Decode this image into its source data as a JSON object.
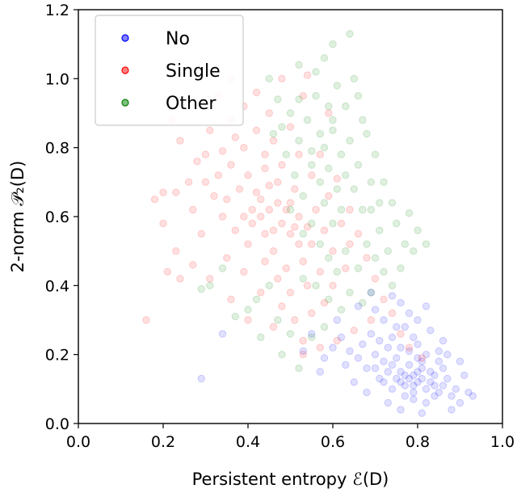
{
  "chart_data": {
    "type": "scatter",
    "xlabel": "Persistent entropy ℰ(D)",
    "ylabel": "2-norm 𝒫₂(D)",
    "xlim": [
      0.0,
      1.0
    ],
    "ylim": [
      0.0,
      1.2
    ],
    "xticks": [
      0.0,
      0.2,
      0.4,
      0.6,
      0.8,
      1.0
    ],
    "xtick_labels": [
      "0.0",
      "0.2",
      "0.4",
      "0.6",
      "0.8",
      "1.0"
    ],
    "yticks": [
      0.0,
      0.2,
      0.4,
      0.6,
      0.8,
      1.0,
      1.2
    ],
    "ytick_labels": [
      "0.0",
      "0.2",
      "0.4",
      "0.6",
      "0.8",
      "1.0",
      "1.2"
    ],
    "legend_position": "top-left",
    "grid": false,
    "marker_alpha": 0.12,
    "series": [
      {
        "name": "No",
        "color": "#0000ff",
        "points": [
          [
            0.78,
            0.13
          ],
          [
            0.76,
            0.15
          ],
          [
            0.8,
            0.12
          ],
          [
            0.82,
            0.1
          ],
          [
            0.74,
            0.17
          ],
          [
            0.79,
            0.14
          ],
          [
            0.77,
            0.11
          ],
          [
            0.81,
            0.16
          ],
          [
            0.75,
            0.13
          ],
          [
            0.83,
            0.12
          ],
          [
            0.72,
            0.18
          ],
          [
            0.7,
            0.2
          ],
          [
            0.73,
            0.15
          ],
          [
            0.85,
            0.09
          ],
          [
            0.86,
            0.11
          ],
          [
            0.88,
            0.08
          ],
          [
            0.84,
            0.14
          ],
          [
            0.8,
            0.19
          ],
          [
            0.78,
            0.21
          ],
          [
            0.76,
            0.22
          ],
          [
            0.71,
            0.24
          ],
          [
            0.69,
            0.26
          ],
          [
            0.67,
            0.23
          ],
          [
            0.66,
            0.19
          ],
          [
            0.64,
            0.21
          ],
          [
            0.68,
            0.16
          ],
          [
            0.71,
            0.13
          ],
          [
            0.74,
            0.1
          ],
          [
            0.77,
            0.08
          ],
          [
            0.79,
            0.07
          ],
          [
            0.82,
            0.06
          ],
          [
            0.87,
            0.13
          ],
          [
            0.89,
            0.1
          ],
          [
            0.9,
            0.06
          ],
          [
            0.92,
            0.09
          ],
          [
            0.93,
            0.08
          ],
          [
            0.91,
            0.14
          ],
          [
            0.85,
            0.18
          ],
          [
            0.82,
            0.2
          ],
          [
            0.79,
            0.25
          ],
          [
            0.75,
            0.28
          ],
          [
            0.72,
            0.3
          ],
          [
            0.7,
            0.33
          ],
          [
            0.76,
            0.35
          ],
          [
            0.8,
            0.3
          ],
          [
            0.83,
            0.27
          ],
          [
            0.86,
            0.24
          ],
          [
            0.62,
            0.25
          ],
          [
            0.6,
            0.22
          ],
          [
            0.63,
            0.17
          ],
          [
            0.58,
            0.19
          ],
          [
            0.65,
            0.12
          ],
          [
            0.68,
            0.09
          ],
          [
            0.73,
            0.06
          ],
          [
            0.76,
            0.04
          ],
          [
            0.81,
            0.03
          ],
          [
            0.88,
            0.04
          ],
          [
            0.84,
            0.08
          ],
          [
            0.78,
            0.17
          ],
          [
            0.81,
            0.13
          ],
          [
            0.77,
            0.14
          ],
          [
            0.8,
            0.15
          ],
          [
            0.79,
            0.11
          ],
          [
            0.83,
            0.15
          ],
          [
            0.75,
            0.19
          ],
          [
            0.73,
            0.22
          ],
          [
            0.86,
            0.16
          ],
          [
            0.87,
            0.2
          ],
          [
            0.78,
            0.32
          ],
          [
            0.74,
            0.37
          ],
          [
            0.55,
            0.26
          ],
          [
            0.53,
            0.21
          ],
          [
            0.29,
            0.13
          ],
          [
            0.34,
            0.26
          ],
          [
            0.57,
            0.15
          ],
          [
            0.61,
            0.3
          ],
          [
            0.66,
            0.34
          ],
          [
            0.69,
            0.38
          ],
          [
            0.82,
            0.34
          ],
          [
            0.9,
            0.18
          ],
          [
            0.79,
            0.09
          ],
          [
            0.76,
            0.12
          ],
          [
            0.81,
            0.18
          ],
          [
            0.84,
            0.11
          ],
          [
            0.72,
            0.12
          ],
          [
            0.7,
            0.16
          ],
          [
            0.74,
            0.25
          ],
          [
            0.77,
            0.28
          ],
          [
            0.8,
            0.23
          ],
          [
            0.85,
            0.21
          ]
        ]
      },
      {
        "name": "Single",
        "color": "#ff0000",
        "points": [
          [
            0.45,
            0.62
          ],
          [
            0.48,
            0.58
          ],
          [
            0.5,
            0.55
          ],
          [
            0.42,
            0.67
          ],
          [
            0.47,
            0.7
          ],
          [
            0.52,
            0.6
          ],
          [
            0.44,
            0.55
          ],
          [
            0.4,
            0.72
          ],
          [
            0.38,
            0.68
          ],
          [
            0.46,
            0.5
          ],
          [
            0.55,
            0.52
          ],
          [
            0.53,
            0.47
          ],
          [
            0.49,
            0.45
          ],
          [
            0.43,
            0.6
          ],
          [
            0.41,
            0.58
          ],
          [
            0.36,
            0.75
          ],
          [
            0.35,
            0.65
          ],
          [
            0.39,
            0.8
          ],
          [
            0.44,
            0.78
          ],
          [
            0.48,
            0.75
          ],
          [
            0.51,
            0.68
          ],
          [
            0.56,
            0.62
          ],
          [
            0.58,
            0.56
          ],
          [
            0.6,
            0.5
          ],
          [
            0.57,
            0.44
          ],
          [
            0.54,
            0.4
          ],
          [
            0.5,
            0.38
          ],
          [
            0.47,
            0.42
          ],
          [
            0.44,
            0.47
          ],
          [
            0.4,
            0.52
          ],
          [
            0.37,
            0.56
          ],
          [
            0.34,
            0.6
          ],
          [
            0.32,
            0.66
          ],
          [
            0.33,
            0.72
          ],
          [
            0.3,
            0.78
          ],
          [
            0.31,
            0.85
          ],
          [
            0.36,
            0.88
          ],
          [
            0.42,
            0.85
          ],
          [
            0.46,
            0.82
          ],
          [
            0.52,
            0.78
          ],
          [
            0.55,
            0.72
          ],
          [
            0.59,
            0.66
          ],
          [
            0.62,
            0.58
          ],
          [
            0.64,
            0.52
          ],
          [
            0.63,
            0.45
          ],
          [
            0.6,
            0.4
          ],
          [
            0.58,
            0.35
          ],
          [
            0.55,
            0.32
          ],
          [
            0.51,
            0.3
          ],
          [
            0.48,
            0.34
          ],
          [
            0.43,
            0.38
          ],
          [
            0.39,
            0.44
          ],
          [
            0.35,
            0.48
          ],
          [
            0.29,
            0.55
          ],
          [
            0.27,
            0.62
          ],
          [
            0.26,
            0.7
          ],
          [
            0.28,
            0.76
          ],
          [
            0.24,
            0.82
          ],
          [
            0.22,
            0.88
          ],
          [
            0.25,
            0.93
          ],
          [
            0.33,
            0.95
          ],
          [
            0.39,
            0.92
          ],
          [
            0.45,
            0.9
          ],
          [
            0.5,
            0.86
          ],
          [
            0.48,
            1.0
          ],
          [
            0.53,
            0.95
          ],
          [
            0.59,
            0.9
          ],
          [
            0.66,
            0.55
          ],
          [
            0.68,
            0.48
          ],
          [
            0.7,
            0.42
          ],
          [
            0.72,
            0.36
          ],
          [
            0.74,
            0.32
          ],
          [
            0.69,
            0.3
          ],
          [
            0.65,
            0.27
          ],
          [
            0.61,
            0.24
          ],
          [
            0.57,
            0.22
          ],
          [
            0.53,
            0.24
          ],
          [
            0.46,
            0.28
          ],
          [
            0.4,
            0.3
          ],
          [
            0.36,
            0.36
          ],
          [
            0.31,
            0.42
          ],
          [
            0.27,
            0.46
          ],
          [
            0.23,
            0.5
          ],
          [
            0.2,
            0.58
          ],
          [
            0.18,
            0.65
          ],
          [
            0.16,
            0.3
          ],
          [
            0.21,
            0.44
          ],
          [
            0.24,
            0.42
          ],
          [
            0.2,
            0.67
          ],
          [
            0.23,
            0.67
          ],
          [
            0.42,
            0.96
          ],
          [
            0.54,
            1.01
          ],
          [
            0.36,
            1.0
          ],
          [
            0.44,
            0.74
          ],
          [
            0.47,
            0.64
          ],
          [
            0.49,
            0.62
          ],
          [
            0.51,
            0.57
          ],
          [
            0.46,
            0.56
          ],
          [
            0.43,
            0.65
          ],
          [
            0.52,
            0.52
          ],
          [
            0.54,
            0.57
          ],
          [
            0.41,
            0.62
          ],
          [
            0.39,
            0.6
          ],
          [
            0.45,
            0.69
          ],
          [
            0.5,
            0.64
          ],
          [
            0.53,
            0.2
          ],
          [
            0.76,
            0.26
          ],
          [
            0.78,
            0.22
          ],
          [
            0.81,
            0.19
          ],
          [
            0.64,
            0.62
          ],
          [
            0.61,
            0.71
          ],
          [
            0.57,
            0.78
          ],
          [
            0.37,
            0.83
          ],
          [
            0.34,
            0.79
          ],
          [
            0.3,
            0.7
          ]
        ]
      },
      {
        "name": "Other",
        "color": "#008000",
        "points": [
          [
            0.55,
            0.75
          ],
          [
            0.58,
            0.8
          ],
          [
            0.6,
            0.85
          ],
          [
            0.52,
            0.82
          ],
          [
            0.62,
            0.78
          ],
          [
            0.57,
            0.7
          ],
          [
            0.54,
            0.88
          ],
          [
            0.59,
            0.92
          ],
          [
            0.61,
            0.98
          ],
          [
            0.56,
            0.95
          ],
          [
            0.5,
            0.9
          ],
          [
            0.48,
            0.86
          ],
          [
            0.63,
            0.72
          ],
          [
            0.65,
            0.68
          ],
          [
            0.66,
            0.75
          ],
          [
            0.64,
            0.82
          ],
          [
            0.67,
            0.88
          ],
          [
            0.62,
            0.62
          ],
          [
            0.6,
            0.58
          ],
          [
            0.58,
            0.64
          ],
          [
            0.53,
            0.66
          ],
          [
            0.51,
            0.72
          ],
          [
            0.49,
            0.78
          ],
          [
            0.47,
            0.94
          ],
          [
            0.45,
            1.0
          ],
          [
            0.52,
            1.04
          ],
          [
            0.58,
            1.06
          ],
          [
            0.64,
            1.13
          ],
          [
            0.6,
            1.1
          ],
          [
            0.56,
            1.02
          ],
          [
            0.66,
            0.95
          ],
          [
            0.68,
            0.84
          ],
          [
            0.7,
            0.78
          ],
          [
            0.72,
            0.7
          ],
          [
            0.69,
            0.62
          ],
          [
            0.71,
            0.56
          ],
          [
            0.73,
            0.5
          ],
          [
            0.68,
            0.52
          ],
          [
            0.66,
            0.45
          ],
          [
            0.63,
            0.5
          ],
          [
            0.61,
            0.44
          ],
          [
            0.59,
            0.48
          ],
          [
            0.57,
            0.52
          ],
          [
            0.55,
            0.58
          ],
          [
            0.53,
            0.55
          ],
          [
            0.5,
            0.62
          ],
          [
            0.74,
            0.64
          ],
          [
            0.75,
            0.58
          ],
          [
            0.77,
            0.52
          ],
          [
            0.76,
            0.45
          ],
          [
            0.74,
            0.4
          ],
          [
            0.72,
            0.44
          ],
          [
            0.7,
            0.48
          ],
          [
            0.69,
            0.38
          ],
          [
            0.67,
            0.35
          ],
          [
            0.64,
            0.38
          ],
          [
            0.62,
            0.33
          ],
          [
            0.59,
            0.36
          ],
          [
            0.56,
            0.4
          ],
          [
            0.53,
            0.42
          ],
          [
            0.45,
            0.4
          ],
          [
            0.42,
            0.36
          ],
          [
            0.4,
            0.33
          ],
          [
            0.47,
            0.3
          ],
          [
            0.5,
            0.26
          ],
          [
            0.55,
            0.25
          ],
          [
            0.58,
            0.28
          ],
          [
            0.43,
            0.25
          ],
          [
            0.48,
            0.2
          ],
          [
            0.52,
            0.16
          ],
          [
            0.34,
            0.45
          ],
          [
            0.31,
            0.4
          ],
          [
            0.29,
            0.39
          ],
          [
            0.37,
            0.31
          ],
          [
            0.6,
            0.88
          ],
          [
            0.63,
            0.92
          ],
          [
            0.57,
            0.84
          ],
          [
            0.55,
            0.79
          ],
          [
            0.59,
            0.74
          ],
          [
            0.61,
            0.68
          ],
          [
            0.78,
            0.61
          ],
          [
            0.8,
            0.56
          ],
          [
            0.79,
            0.5
          ],
          [
            0.82,
            0.52
          ],
          [
            0.46,
            0.84
          ],
          [
            0.52,
            0.94
          ],
          [
            0.65,
            1.0
          ],
          [
            0.67,
            0.62
          ],
          [
            0.69,
            0.7
          ],
          [
            0.71,
            0.64
          ]
        ]
      }
    ]
  }
}
